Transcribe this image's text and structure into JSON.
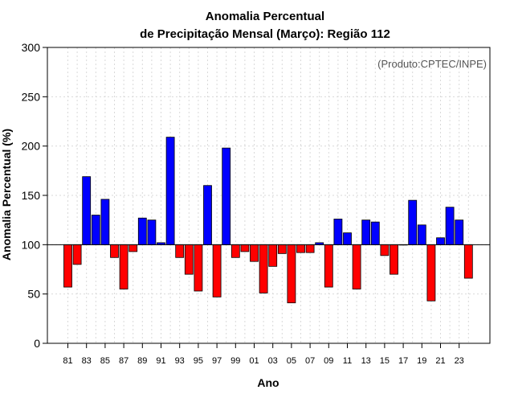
{
  "chart_data": {
    "type": "bar",
    "title": "Anomalia Percentual",
    "subtitle": "de Precipitação Mensal (Março): Região 112",
    "xlabel": "Ano",
    "ylabel": "Anomalia Percentual (%)",
    "annotation": "(Produto:CPTEC/INPE)",
    "baseline": 100,
    "ylim": [
      0,
      300
    ],
    "yticks": [
      0,
      50,
      100,
      150,
      200,
      250,
      300
    ],
    "grid": true,
    "colors": {
      "above": "#0000ff",
      "below": "#ff0000",
      "outline": "#000000",
      "grid": "#d9d9d9"
    },
    "categories": [
      "81",
      "82",
      "83",
      "84",
      "85",
      "86",
      "87",
      "88",
      "89",
      "90",
      "91",
      "92",
      "93",
      "94",
      "95",
      "96",
      "97",
      "98",
      "99",
      "00",
      "01",
      "02",
      "03",
      "04",
      "05",
      "06",
      "07",
      "08",
      "09",
      "10",
      "11",
      "12",
      "13",
      "14",
      "15",
      "16",
      "17",
      "18",
      "19",
      "20",
      "21",
      "22",
      "23",
      "24"
    ],
    "x_tick_labels": [
      "81",
      "83",
      "85",
      "87",
      "89",
      "91",
      "93",
      "95",
      "97",
      "99",
      "01",
      "03",
      "05",
      "07",
      "09",
      "11",
      "13",
      "15",
      "17",
      "19",
      "21",
      "23"
    ],
    "values": [
      57,
      80,
      169,
      130,
      146,
      87,
      55,
      93,
      127,
      125,
      102,
      209,
      87,
      70,
      53,
      160,
      47,
      198,
      87,
      93,
      83,
      51,
      78,
      91,
      41,
      92,
      92,
      102,
      57,
      126,
      112,
      55,
      125,
      123,
      89,
      70,
      100,
      145,
      120,
      43,
      107,
      138,
      125,
      66
    ]
  }
}
